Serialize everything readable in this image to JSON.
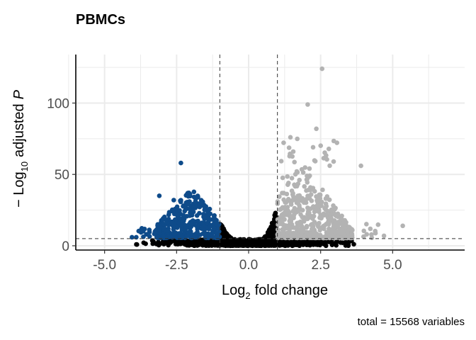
{
  "chart_data": {
    "type": "scatter",
    "title": "PBMCs",
    "xlabel": {
      "base": "Log",
      "sub": "2",
      "rest": "fold change"
    },
    "ylabel": {
      "prefix": "− Log",
      "sub": "10",
      "rest": "adjusted",
      "italic": "P"
    },
    "caption": "total = 15568 variables",
    "xlim": [
      -6,
      7.5
    ],
    "ylim": [
      -3,
      134
    ],
    "x_ticks": [
      -5,
      -2.5,
      0,
      2.5,
      5
    ],
    "x_tick_labels": [
      "-5.0",
      "-2.5",
      "0.0",
      "2.5",
      "5.0"
    ],
    "y_ticks": [
      0,
      50,
      100
    ],
    "y_tick_labels": [
      "0",
      "50",
      "100"
    ],
    "x_minor_ticks": [
      -6.25,
      -3.75,
      -1.25,
      1.25,
      3.75,
      6.25
    ],
    "y_minor_ticks": [
      25,
      75,
      125
    ],
    "fc_cutoffs": [
      -1,
      1
    ],
    "p_cutoff": 5,
    "grid": true,
    "legend": "none",
    "colors": {
      "ns": "#000000",
      "down": "#0e4b8a",
      "up": "#b3b3b3"
    },
    "highlight_points": [
      {
        "x": 2.55,
        "y": 124,
        "group": "up"
      },
      {
        "x": 2.05,
        "y": 99,
        "group": "up"
      },
      {
        "x": 2.35,
        "y": 82,
        "group": "up"
      },
      {
        "x": 1.45,
        "y": 76,
        "group": "up"
      },
      {
        "x": 1.55,
        "y": 66,
        "group": "up"
      },
      {
        "x": 2.95,
        "y": 59,
        "group": "up"
      },
      {
        "x": 3.9,
        "y": 56,
        "group": "up"
      },
      {
        "x": 5.35,
        "y": 14,
        "group": "up"
      },
      {
        "x": 4.7,
        "y": 7,
        "group": "up"
      },
      {
        "x": 4.1,
        "y": 8,
        "group": "up"
      },
      {
        "x": -2.35,
        "y": 58,
        "group": "down"
      },
      {
        "x": -3.1,
        "y": 35,
        "group": "down"
      },
      {
        "x": -2.6,
        "y": 32,
        "group": "down"
      },
      {
        "x": -3.25,
        "y": 10,
        "group": "down"
      },
      {
        "x": -3.55,
        "y": 8,
        "group": "down"
      },
      {
        "x": -3.9,
        "y": 6,
        "group": "down"
      },
      {
        "x": -4.05,
        "y": 6,
        "group": "down"
      }
    ]
  }
}
